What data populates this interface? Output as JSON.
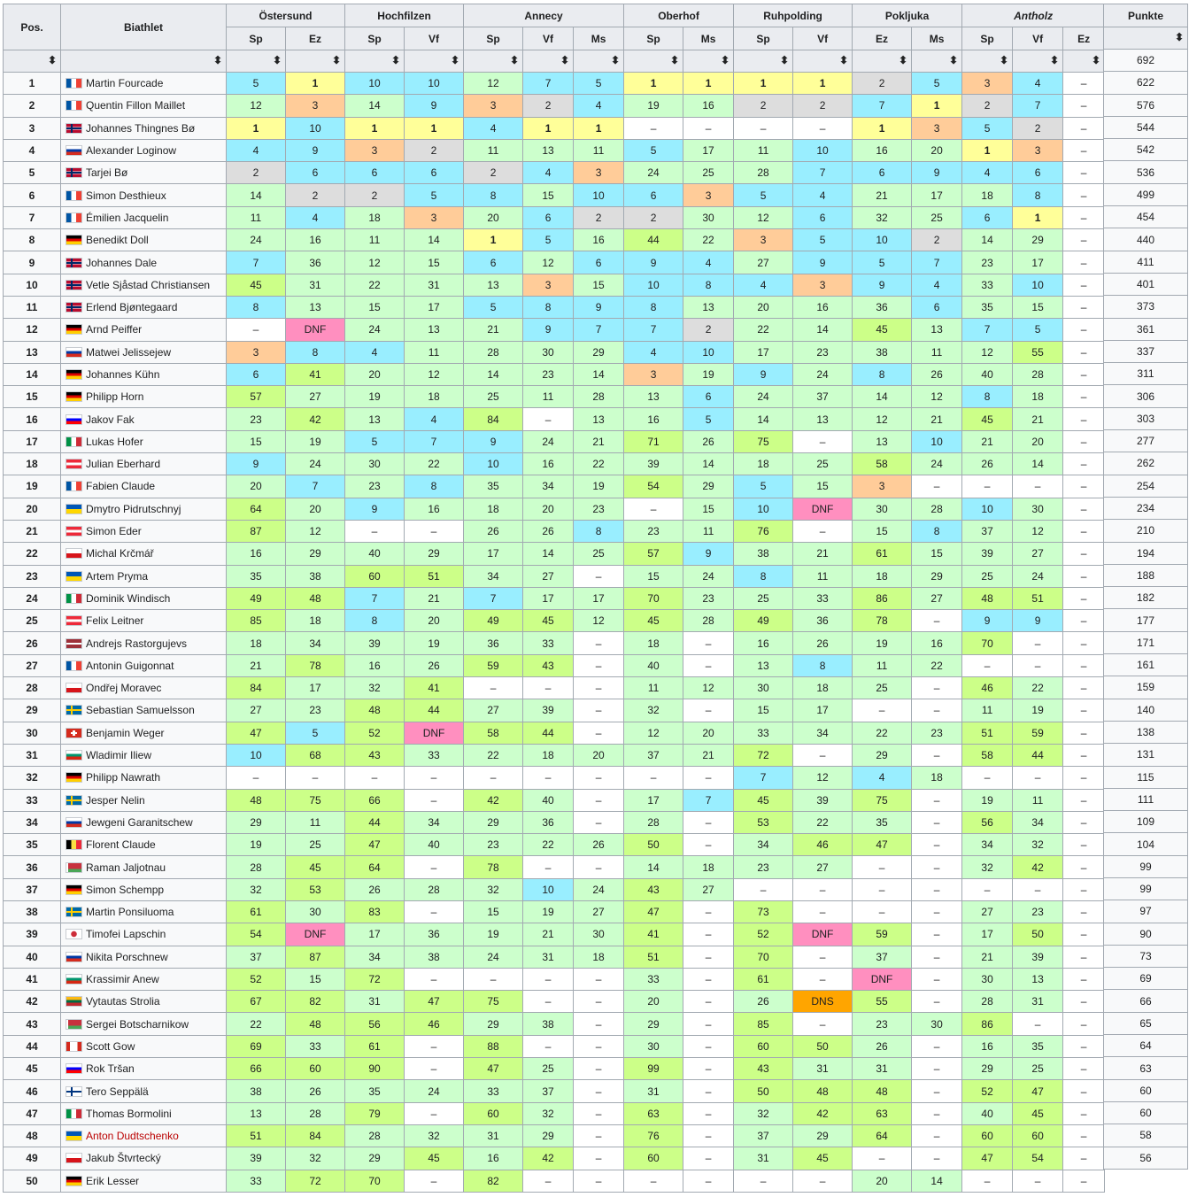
{
  "headers": {
    "pos": "Pos.",
    "athlete": "Biathlet",
    "points": "Punkte",
    "events": [
      {
        "name": "Östersund",
        "italic": false,
        "races": [
          "Sp",
          "Ez"
        ]
      },
      {
        "name": "Hochfilzen",
        "italic": false,
        "races": [
          "Sp",
          "Vf"
        ]
      },
      {
        "name": "Annecy",
        "italic": false,
        "races": [
          "Sp",
          "Vf",
          "Ms"
        ]
      },
      {
        "name": "Oberhof",
        "italic": false,
        "races": [
          "Sp",
          "Ms"
        ]
      },
      {
        "name": "Ruhpolding",
        "italic": false,
        "races": [
          "Sp",
          "Vf"
        ]
      },
      {
        "name": "Pokljuka",
        "italic": false,
        "races": [
          "Ez",
          "Ms"
        ]
      },
      {
        "name": "Antholz",
        "italic": true,
        "races": [
          "Sp",
          "Vf",
          "Ez"
        ]
      }
    ]
  },
  "colors": {
    "1": "#ffff99",
    "2": "#dddddd",
    "3": "#ffcc99",
    "top10": "#99eeff",
    "points": "#ccffcc",
    "nopoints": "#ccff88",
    "dnf": "#ff8fbf",
    "dns": "#ffa500",
    "header": "#eaecf0",
    "link": "#0645ad"
  },
  "rows": [
    {
      "pos": "1",
      "name": "Martin Fourcade",
      "flag": "fra",
      "results": [
        "5",
        "1",
        "10",
        "10",
        "12",
        "7",
        "5",
        "1",
        "1",
        "1",
        "1",
        "2",
        "5",
        "3",
        "4",
        "–"
      ],
      "points": "692"
    },
    {
      "pos": "2",
      "name": "Quentin Fillon Maillet",
      "flag": "fra",
      "results": [
        "12",
        "3",
        "14",
        "9",
        "3",
        "2",
        "4",
        "19",
        "16",
        "2",
        "2",
        "7",
        "1",
        "2",
        "7",
        "–"
      ],
      "points": "622"
    },
    {
      "pos": "3",
      "name": "Johannes Thingnes Bø",
      "flag": "nor",
      "results": [
        "1",
        "10",
        "1",
        "1",
        "4",
        "1",
        "1",
        "–",
        "–",
        "–",
        "–",
        "1",
        "3",
        "5",
        "2",
        "–"
      ],
      "points": "576"
    },
    {
      "pos": "4",
      "name": "Alexander Loginow",
      "flag": "rus",
      "results": [
        "4",
        "9",
        "3",
        "2",
        "11",
        "13",
        "11",
        "5",
        "17",
        "11",
        "10",
        "16",
        "20",
        "1",
        "3",
        "–"
      ],
      "points": "544"
    },
    {
      "pos": "5",
      "name": "Tarjei Bø",
      "flag": "nor",
      "results": [
        "2",
        "6",
        "6",
        "6",
        "2",
        "4",
        "3",
        "24",
        "25",
        "28",
        "7",
        "6",
        "9",
        "4",
        "6",
        "–"
      ],
      "points": "542"
    },
    {
      "pos": "6",
      "name": "Simon Desthieux",
      "flag": "fra",
      "results": [
        "14",
        "2",
        "2",
        "5",
        "8",
        "15",
        "10",
        "6",
        "3",
        "5",
        "4",
        "21",
        "17",
        "18",
        "8",
        "–"
      ],
      "points": "536"
    },
    {
      "pos": "7",
      "name": "Émilien Jacquelin",
      "flag": "fra",
      "results": [
        "11",
        "4",
        "18",
        "3",
        "20",
        "6",
        "2",
        "2",
        "30",
        "12",
        "6",
        "32",
        "25",
        "6",
        "1",
        "–"
      ],
      "points": "499"
    },
    {
      "pos": "8",
      "name": "Benedikt Doll",
      "flag": "ger",
      "results": [
        "24",
        "16",
        "11",
        "14",
        "1",
        "5",
        "16",
        "44",
        "22",
        "3",
        "5",
        "10",
        "2",
        "14",
        "29",
        "–"
      ],
      "points": "454"
    },
    {
      "pos": "9",
      "name": "Johannes Dale",
      "flag": "nor",
      "results": [
        "7",
        "36",
        "12",
        "15",
        "6",
        "12",
        "6",
        "9",
        "4",
        "27",
        "9",
        "5",
        "7",
        "23",
        "17",
        "–"
      ],
      "points": "440"
    },
    {
      "pos": "10",
      "name": "Vetle Sjåstad Christiansen",
      "flag": "nor",
      "results": [
        "45",
        "31",
        "22",
        "31",
        "13",
        "3",
        "15",
        "10",
        "8",
        "4",
        "3",
        "9",
        "4",
        "33",
        "10",
        "–"
      ],
      "points": "411"
    },
    {
      "pos": "11",
      "name": "Erlend Bjøntegaard",
      "flag": "nor",
      "results": [
        "8",
        "13",
        "15",
        "17",
        "5",
        "8",
        "9",
        "8",
        "13",
        "20",
        "16",
        "36",
        "6",
        "35",
        "15",
        "–"
      ],
      "points": "401"
    },
    {
      "pos": "12",
      "name": "Arnd Peiffer",
      "flag": "ger",
      "results": [
        "–",
        "DNF",
        "24",
        "13",
        "21",
        "9",
        "7",
        "7",
        "2",
        "22",
        "14",
        "45",
        "13",
        "7",
        "5",
        "–"
      ],
      "points": "373"
    },
    {
      "pos": "13",
      "name": "Matwei Jelissejew",
      "flag": "rus",
      "results": [
        "3",
        "8",
        "4",
        "11",
        "28",
        "30",
        "29",
        "4",
        "10",
        "17",
        "23",
        "38",
        "11",
        "12",
        "55",
        "–"
      ],
      "points": "361"
    },
    {
      "pos": "14",
      "name": "Johannes Kühn",
      "flag": "ger",
      "results": [
        "6",
        "41",
        "20",
        "12",
        "14",
        "23",
        "14",
        "3",
        "19",
        "9",
        "24",
        "8",
        "26",
        "40",
        "28",
        "–"
      ],
      "points": "337"
    },
    {
      "pos": "15",
      "name": "Philipp Horn",
      "flag": "ger",
      "results": [
        "57",
        "27",
        "19",
        "18",
        "25",
        "11",
        "28",
        "13",
        "6",
        "24",
        "37",
        "14",
        "12",
        "8",
        "18",
        "–"
      ],
      "points": "311"
    },
    {
      "pos": "16",
      "name": "Jakov Fak",
      "flag": "svn",
      "results": [
        "23",
        "42",
        "13",
        "4",
        "84",
        "–",
        "13",
        "16",
        "5",
        "14",
        "13",
        "12",
        "21",
        "45",
        "21",
        "–"
      ],
      "points": "306"
    },
    {
      "pos": "17",
      "name": "Lukas Hofer",
      "flag": "ita",
      "results": [
        "15",
        "19",
        "5",
        "7",
        "9",
        "24",
        "21",
        "71",
        "26",
        "75",
        "–",
        "13",
        "10",
        "21",
        "20",
        "–"
      ],
      "points": "303"
    },
    {
      "pos": "18",
      "name": "Julian Eberhard",
      "flag": "aut",
      "results": [
        "9",
        "24",
        "30",
        "22",
        "10",
        "16",
        "22",
        "39",
        "14",
        "18",
        "25",
        "58",
        "24",
        "26",
        "14",
        "–"
      ],
      "points": "277"
    },
    {
      "pos": "19",
      "name": "Fabien Claude",
      "flag": "fra",
      "results": [
        "20",
        "7",
        "23",
        "8",
        "35",
        "34",
        "19",
        "54",
        "29",
        "5",
        "15",
        "3",
        "–",
        "–",
        "–",
        "–"
      ],
      "points": "262"
    },
    {
      "pos": "20",
      "name": "Dmytro Pidrutschnyj",
      "flag": "ukr",
      "results": [
        "64",
        "20",
        "9",
        "16",
        "18",
        "20",
        "23",
        "–",
        "15",
        "10",
        "DNF",
        "30",
        "28",
        "10",
        "30",
        "–"
      ],
      "points": "254"
    },
    {
      "pos": "21",
      "name": "Simon Eder",
      "flag": "aut",
      "results": [
        "87",
        "12",
        "–",
        "–",
        "26",
        "26",
        "8",
        "23",
        "11",
        "76",
        "–",
        "15",
        "8",
        "37",
        "12",
        "–"
      ],
      "points": "234"
    },
    {
      "pos": "22",
      "name": "Michal Krčmář",
      "flag": "cze",
      "results": [
        "16",
        "29",
        "40",
        "29",
        "17",
        "14",
        "25",
        "57",
        "9",
        "38",
        "21",
        "61",
        "15",
        "39",
        "27",
        "–"
      ],
      "points": "210"
    },
    {
      "pos": "23",
      "name": "Artem Pryma",
      "flag": "ukr",
      "results": [
        "35",
        "38",
        "60",
        "51",
        "34",
        "27",
        "–",
        "15",
        "24",
        "8",
        "11",
        "18",
        "29",
        "25",
        "24",
        "–"
      ],
      "points": "194"
    },
    {
      "pos": "24",
      "name": "Dominik Windisch",
      "flag": "ita",
      "results": [
        "49",
        "48",
        "7",
        "21",
        "7",
        "17",
        "17",
        "70",
        "23",
        "25",
        "33",
        "86",
        "27",
        "48",
        "51",
        "–"
      ],
      "points": "188"
    },
    {
      "pos": "25",
      "name": "Felix Leitner",
      "flag": "aut",
      "results": [
        "85",
        "18",
        "8",
        "20",
        "49",
        "45",
        "12",
        "45",
        "28",
        "49",
        "36",
        "78",
        "–",
        "9",
        "9",
        "–"
      ],
      "points": "182"
    },
    {
      "pos": "26",
      "name": "Andrejs Rastorgujevs",
      "flag": "lat",
      "results": [
        "18",
        "34",
        "39",
        "19",
        "36",
        "33",
        "–",
        "18",
        "–",
        "16",
        "26",
        "19",
        "16",
        "70",
        "–",
        "–"
      ],
      "points": "177"
    },
    {
      "pos": "27",
      "name": "Antonin Guigonnat",
      "flag": "fra",
      "results": [
        "21",
        "78",
        "16",
        "26",
        "59",
        "43",
        "–",
        "40",
        "–",
        "13",
        "8",
        "11",
        "22",
        "–",
        "–",
        "–"
      ],
      "points": "171"
    },
    {
      "pos": "28",
      "name": "Ondřej Moravec",
      "flag": "cze",
      "results": [
        "84",
        "17",
        "32",
        "41",
        "–",
        "–",
        "–",
        "11",
        "12",
        "30",
        "18",
        "25",
        "–",
        "46",
        "22",
        "–"
      ],
      "points": "161"
    },
    {
      "pos": "29",
      "name": "Sebastian Samuelsson",
      "flag": "swe",
      "results": [
        "27",
        "23",
        "48",
        "44",
        "27",
        "39",
        "–",
        "32",
        "–",
        "15",
        "17",
        "–",
        "–",
        "11",
        "19",
        "–"
      ],
      "points": "159"
    },
    {
      "pos": "30",
      "name": "Benjamin Weger",
      "flag": "sui",
      "results": [
        "47",
        "5",
        "52",
        "DNF",
        "58",
        "44",
        "–",
        "12",
        "20",
        "33",
        "34",
        "22",
        "23",
        "51",
        "59",
        "–"
      ],
      "points": "140"
    },
    {
      "pos": "31",
      "name": "Wladimir Iliew",
      "flag": "bul",
      "results": [
        "10",
        "68",
        "43",
        "33",
        "22",
        "18",
        "20",
        "37",
        "21",
        "72",
        "–",
        "29",
        "–",
        "58",
        "44",
        "–"
      ],
      "points": "138"
    },
    {
      "pos": "32",
      "name": "Philipp Nawrath",
      "flag": "ger",
      "results": [
        "–",
        "–",
        "–",
        "–",
        "–",
        "–",
        "–",
        "–",
        "–",
        "7",
        "12",
        "4",
        "18",
        "–",
        "–",
        "–"
      ],
      "points": "131"
    },
    {
      "pos": "33",
      "name": "Jesper Nelin",
      "flag": "swe",
      "results": [
        "48",
        "75",
        "66",
        "–",
        "42",
        "40",
        "–",
        "17",
        "7",
        "45",
        "39",
        "75",
        "–",
        "19",
        "11",
        "–"
      ],
      "points": "115"
    },
    {
      "pos": "34",
      "name": "Jewgeni Garanitschew",
      "flag": "rus",
      "results": [
        "29",
        "11",
        "44",
        "34",
        "29",
        "36",
        "–",
        "28",
        "–",
        "53",
        "22",
        "35",
        "–",
        "56",
        "34",
        "–"
      ],
      "points": "111"
    },
    {
      "pos": "35",
      "name": "Florent Claude",
      "flag": "bel",
      "results": [
        "19",
        "25",
        "47",
        "40",
        "23",
        "22",
        "26",
        "50",
        "–",
        "34",
        "46",
        "47",
        "–",
        "34",
        "32",
        "–"
      ],
      "points": "109"
    },
    {
      "pos": "36",
      "name": "Raman Jaljotnau",
      "flag": "blr",
      "results": [
        "28",
        "45",
        "64",
        "–",
        "78",
        "–",
        "–",
        "14",
        "18",
        "23",
        "27",
        "–",
        "–",
        "32",
        "42",
        "–"
      ],
      "points": "104"
    },
    {
      "pos": "37",
      "name": "Simon Schempp",
      "flag": "ger",
      "results": [
        "32",
        "53",
        "26",
        "28",
        "32",
        "10",
        "24",
        "43",
        "27",
        "–",
        "–",
        "–",
        "–",
        "–",
        "–",
        "–"
      ],
      "points": "99"
    },
    {
      "pos": "38",
      "name": "Martin Ponsiluoma",
      "flag": "swe",
      "results": [
        "61",
        "30",
        "83",
        "–",
        "15",
        "19",
        "27",
        "47",
        "–",
        "73",
        "–",
        "–",
        "–",
        "27",
        "23",
        "–"
      ],
      "points": "99"
    },
    {
      "pos": "39",
      "name": "Timofei Lapschin",
      "flag": "kor",
      "results": [
        "54",
        "DNF",
        "17",
        "36",
        "19",
        "21",
        "30",
        "41",
        "–",
        "52",
        "DNF",
        "59",
        "–",
        "17",
        "50",
        "–"
      ],
      "points": "97"
    },
    {
      "pos": "40",
      "name": "Nikita Porschnew",
      "flag": "rus",
      "results": [
        "37",
        "87",
        "34",
        "38",
        "24",
        "31",
        "18",
        "51",
        "–",
        "70",
        "–",
        "37",
        "–",
        "21",
        "39",
        "–"
      ],
      "points": "90"
    },
    {
      "pos": "41",
      "name": "Krassimir Anew",
      "flag": "bul",
      "results": [
        "52",
        "15",
        "72",
        "–",
        "–",
        "–",
        "–",
        "33",
        "–",
        "61",
        "–",
        "DNF",
        "–",
        "30",
        "13",
        "–"
      ],
      "points": "73"
    },
    {
      "pos": "42",
      "name": "Vytautas Strolia",
      "flag": "ltu",
      "results": [
        "67",
        "82",
        "31",
        "47",
        "75",
        "–",
        "–",
        "20",
        "–",
        "26",
        "DNS",
        "55",
        "–",
        "28",
        "31",
        "–"
      ],
      "points": "69"
    },
    {
      "pos": "43",
      "name": "Sergei Botscharnikow",
      "flag": "blr",
      "results": [
        "22",
        "48",
        "56",
        "46",
        "29",
        "38",
        "–",
        "29",
        "–",
        "85",
        "–",
        "23",
        "30",
        "86",
        "–",
        "–"
      ],
      "points": "66"
    },
    {
      "pos": "44",
      "name": "Scott Gow",
      "flag": "can",
      "results": [
        "69",
        "33",
        "61",
        "–",
        "88",
        "–",
        "–",
        "30",
        "–",
        "60",
        "50",
        "26",
        "–",
        "16",
        "35",
        "–"
      ],
      "points": "65"
    },
    {
      "pos": "45",
      "name": "Rok Tršan",
      "flag": "svn",
      "results": [
        "66",
        "60",
        "90",
        "–",
        "47",
        "25",
        "–",
        "99",
        "–",
        "43",
        "31",
        "31",
        "–",
        "29",
        "25",
        "–"
      ],
      "points": "64"
    },
    {
      "pos": "46",
      "name": "Tero Seppälä",
      "flag": "fin",
      "results": [
        "38",
        "26",
        "35",
        "24",
        "33",
        "37",
        "–",
        "31",
        "–",
        "50",
        "48",
        "48",
        "–",
        "52",
        "47",
        "–"
      ],
      "points": "63"
    },
    {
      "pos": "47",
      "name": "Thomas Bormolini",
      "flag": "ita",
      "results": [
        "13",
        "28",
        "79",
        "–",
        "60",
        "32",
        "–",
        "63",
        "–",
        "32",
        "42",
        "63",
        "–",
        "40",
        "45",
        "–"
      ],
      "points": "60"
    },
    {
      "pos": "48",
      "name": "Anton Dudtschenko",
      "flag": "ukr",
      "red": true,
      "results": [
        "51",
        "84",
        "28",
        "32",
        "31",
        "29",
        "–",
        "76",
        "–",
        "37",
        "29",
        "64",
        "–",
        "60",
        "60",
        "–"
      ],
      "points": "60"
    },
    {
      "pos": "49",
      "name": "Jakub Štvrtecký",
      "flag": "cze",
      "results": [
        "39",
        "32",
        "29",
        "45",
        "16",
        "42",
        "–",
        "60",
        "–",
        "31",
        "45",
        "–",
        "–",
        "47",
        "54",
        "–"
      ],
      "points": "58"
    },
    {
      "pos": "50",
      "name": "Erik Lesser",
      "flag": "ger",
      "results": [
        "33",
        "72",
        "70",
        "–",
        "82",
        "–",
        "–",
        "–",
        "–",
        "–",
        "–",
        "20",
        "14",
        "–",
        "–",
        "–"
      ],
      "points": "56"
    }
  ]
}
